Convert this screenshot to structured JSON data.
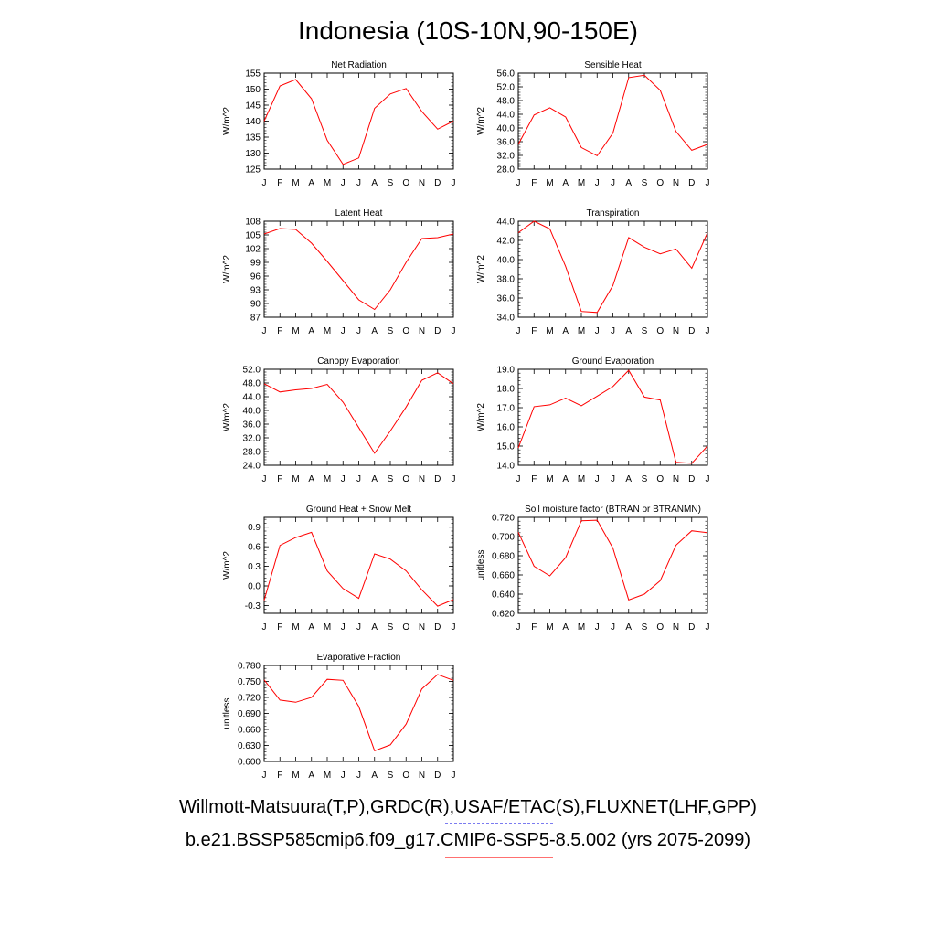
{
  "page": {
    "title": "Indonesia (10S-10N,90-150E)"
  },
  "legend": {
    "observations": "Willmott-Matsuura(T,P),GRDC(R),USAF/ETAC(S),FLUXNET(LHF,GPP)",
    "model": "b.e21.BSSP585cmip6.f09_g17.CMIP6-SSP5-8.5.002 (yrs 2075-2099)",
    "observations_color": "#7b7bf0",
    "model_color": "#ff0000"
  },
  "chart_data": [
    {
      "type": "line",
      "title": "Net Radiation",
      "ylabel": "W/m^2",
      "categories": [
        "J",
        "F",
        "M",
        "A",
        "M",
        "J",
        "J",
        "A",
        "S",
        "O",
        "N",
        "D",
        "J"
      ],
      "yticks": [
        "125",
        "130",
        "135",
        "140",
        "145",
        "150",
        "155"
      ],
      "ylim": [
        125,
        155
      ],
      "values": [
        140.0,
        151.0,
        153.0,
        147.0,
        134.0,
        126.5,
        128.5,
        144.0,
        148.5,
        150.2,
        143.0,
        137.5,
        140.0
      ]
    },
    {
      "type": "line",
      "title": "Sensible Heat",
      "ylabel": "W/m^2",
      "categories": [
        "J",
        "F",
        "M",
        "A",
        "M",
        "J",
        "J",
        "A",
        "S",
        "O",
        "N",
        "D",
        "J"
      ],
      "yticks": [
        "28.0",
        "32.0",
        "36.0",
        "40.0",
        "44.0",
        "48.0",
        "52.0",
        "56.0"
      ],
      "ylim": [
        28,
        56
      ],
      "values": [
        35.2,
        43.8,
        45.9,
        43.2,
        34.3,
        31.9,
        38.5,
        54.7,
        55.4,
        51.0,
        39.0,
        33.5,
        35.2
      ]
    },
    {
      "type": "line",
      "title": "Latent Heat",
      "ylabel": "W/m^2",
      "categories": [
        "J",
        "F",
        "M",
        "A",
        "M",
        "J",
        "J",
        "A",
        "S",
        "O",
        "N",
        "D",
        "J"
      ],
      "yticks": [
        "87",
        "90",
        "93",
        "96",
        "99",
        "102",
        "105",
        "108"
      ],
      "ylim": [
        87,
        108
      ],
      "values": [
        105.2,
        106.4,
        106.2,
        103.2,
        99.2,
        95.0,
        90.8,
        88.7,
        93.0,
        99.0,
        104.2,
        104.4,
        105.2
      ]
    },
    {
      "type": "line",
      "title": "Transpiration",
      "ylabel": "W/m^2",
      "categories": [
        "J",
        "F",
        "M",
        "A",
        "M",
        "J",
        "J",
        "A",
        "S",
        "O",
        "N",
        "D",
        "J"
      ],
      "yticks": [
        "34.0",
        "36.0",
        "38.0",
        "40.0",
        "42.0",
        "44.0"
      ],
      "ylim": [
        34,
        44
      ],
      "values": [
        42.8,
        44.0,
        43.2,
        39.3,
        34.6,
        34.5,
        37.3,
        42.3,
        41.3,
        40.6,
        41.1,
        39.1,
        42.8
      ]
    },
    {
      "type": "line",
      "title": "Canopy Evaporation",
      "ylabel": "W/m^2",
      "categories": [
        "J",
        "F",
        "M",
        "A",
        "M",
        "J",
        "J",
        "A",
        "S",
        "O",
        "N",
        "D",
        "J"
      ],
      "yticks": [
        "24.0",
        "28.0",
        "32.0",
        "36.0",
        "40.0",
        "44.0",
        "48.0",
        "52.0"
      ],
      "ylim": [
        24,
        52
      ],
      "values": [
        47.8,
        45.4,
        46.0,
        46.4,
        47.6,
        42.4,
        35.0,
        27.5,
        34.0,
        41.0,
        48.8,
        51.0,
        47.8
      ]
    },
    {
      "type": "line",
      "title": "Ground Evaporation",
      "ylabel": "W/m^2",
      "categories": [
        "J",
        "F",
        "M",
        "A",
        "M",
        "J",
        "J",
        "A",
        "S",
        "O",
        "N",
        "D",
        "J"
      ],
      "yticks": [
        "14.0",
        "15.0",
        "16.0",
        "17.0",
        "18.0",
        "19.0"
      ],
      "ylim": [
        14,
        19
      ],
      "values": [
        14.9,
        17.05,
        17.15,
        17.5,
        17.1,
        17.6,
        18.1,
        18.95,
        17.55,
        17.4,
        14.15,
        14.1,
        15.0
      ]
    },
    {
      "type": "line",
      "title": "Ground Heat + Snow Melt",
      "ylabel": "W/m^2",
      "categories": [
        "J",
        "F",
        "M",
        "A",
        "M",
        "J",
        "J",
        "A",
        "S",
        "O",
        "N",
        "D",
        "J"
      ],
      "yticks": [
        "-0.3",
        "0.0",
        "0.3",
        "0.6",
        "0.9"
      ],
      "ylim": [
        -0.42,
        1.05
      ],
      "values": [
        -0.22,
        0.62,
        0.74,
        0.82,
        0.23,
        -0.04,
        -0.19,
        0.49,
        0.41,
        0.23,
        -0.06,
        -0.31,
        -0.21
      ]
    },
    {
      "type": "line",
      "title": "Soil moisture factor (BTRAN or BTRANMN)",
      "ylabel": "unitless",
      "categories": [
        "J",
        "F",
        "M",
        "A",
        "M",
        "J",
        "J",
        "A",
        "S",
        "O",
        "N",
        "D",
        "J"
      ],
      "yticks": [
        "0.620",
        "0.640",
        "0.660",
        "0.680",
        "0.700",
        "0.720"
      ],
      "ylim": [
        0.62,
        0.72
      ],
      "values": [
        0.7045,
        0.669,
        0.659,
        0.678,
        0.7165,
        0.717,
        0.688,
        0.634,
        0.64,
        0.654,
        0.691,
        0.706,
        0.704
      ]
    },
    {
      "type": "line",
      "title": "Evaporative Fraction",
      "ylabel": "unitless",
      "categories": [
        "J",
        "F",
        "M",
        "A",
        "M",
        "J",
        "J",
        "A",
        "S",
        "O",
        "N",
        "D",
        "J"
      ],
      "yticks": [
        "0.600",
        "0.630",
        "0.660",
        "0.690",
        "0.720",
        "0.750",
        "0.780"
      ],
      "ylim": [
        0.6,
        0.78
      ],
      "values": [
        0.753,
        0.715,
        0.711,
        0.72,
        0.754,
        0.752,
        0.703,
        0.62,
        0.631,
        0.67,
        0.736,
        0.763,
        0.752
      ]
    }
  ]
}
